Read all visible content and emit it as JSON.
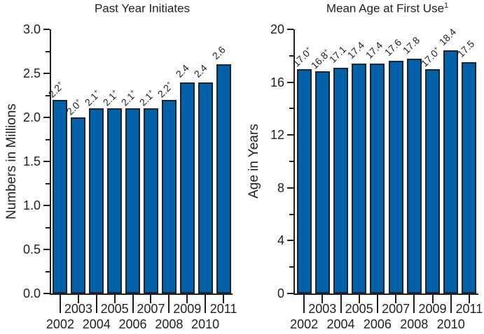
{
  "figure": {
    "background": "#ffffff",
    "text_color": "#231f20",
    "axis_color": "#231f20",
    "bar_fill": "#0061a8",
    "bar_border": "#1d2430"
  },
  "chart_data": [
    {
      "type": "bar",
      "title": "Past Year Initiates",
      "title_superscript": "",
      "ylabel": "Numbers in Millions",
      "xlabel": "",
      "ylim": [
        0,
        3.0
      ],
      "ytick_interval": 0.5,
      "ytick_minor_interval": 0.25,
      "ytick_decimals": 1,
      "grid": false,
      "legend": "none",
      "categories": [
        "2002",
        "2003",
        "2004",
        "2005",
        "2006",
        "2007",
        "2008",
        "2009",
        "2010",
        "2011"
      ],
      "values": [
        2.2,
        2.0,
        2.1,
        2.1,
        2.1,
        2.1,
        2.2,
        2.4,
        2.4,
        2.6
      ],
      "bar_labels": [
        "2.2+",
        "2.0+",
        "2.1+",
        "2.1+",
        "2.1+",
        "2.1+",
        "2.2+",
        "2.4",
        "2.4",
        "2.6"
      ]
    },
    {
      "type": "bar",
      "title": "Mean Age at First Use",
      "title_superscript": "1",
      "ylabel": "Age in Years",
      "xlabel": "",
      "ylim": [
        0,
        20
      ],
      "ytick_interval": 4,
      "ytick_minor_interval": 2,
      "ytick_decimals": 0,
      "grid": false,
      "legend": "none",
      "categories": [
        "2002",
        "2003",
        "2004",
        "2005",
        "2006",
        "2007",
        "2008",
        "2009",
        "2010",
        "2011"
      ],
      "values": [
        17.0,
        16.8,
        17.1,
        17.4,
        17.4,
        17.6,
        17.8,
        17.0,
        18.4,
        17.5
      ],
      "bar_labels": [
        "17.0+",
        "16.8+",
        "17.1",
        "17.4",
        "17.4",
        "17.6",
        "17.8",
        "17.0+",
        "18.4",
        "17.5"
      ]
    }
  ]
}
